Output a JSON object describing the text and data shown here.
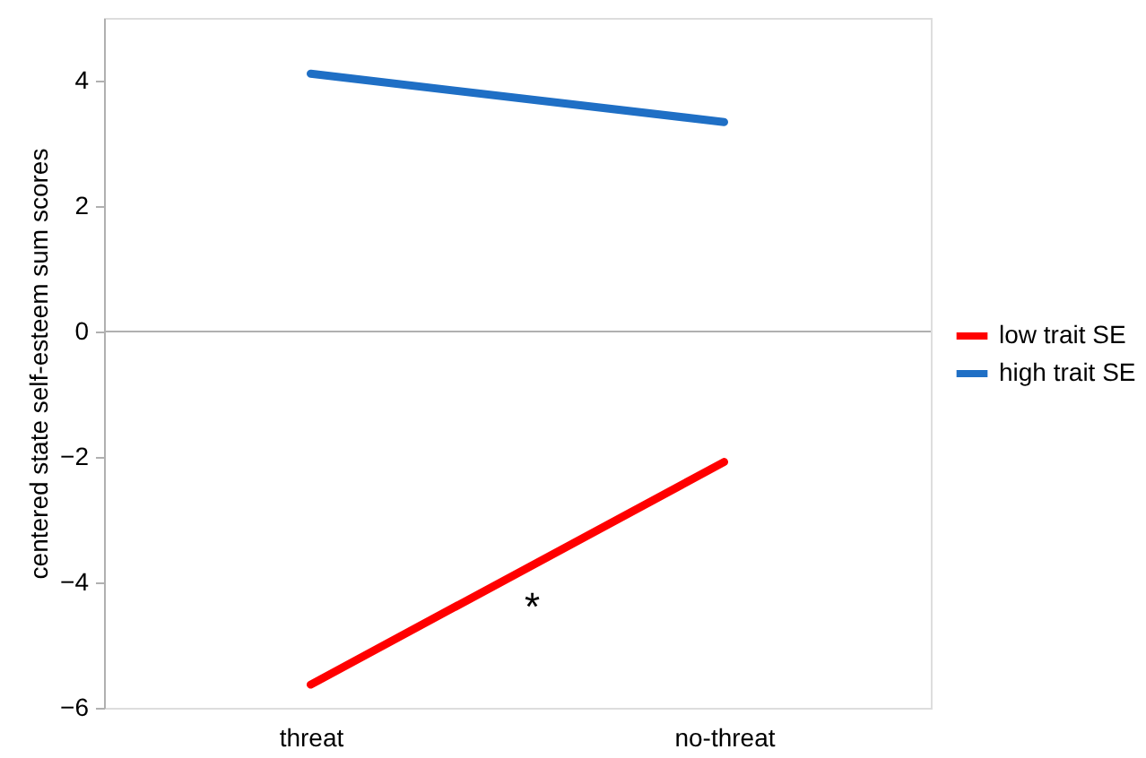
{
  "chart_data": {
    "type": "line",
    "ylabel": "centered state self-esteem sum scores",
    "categories": [
      "threat",
      "no-threat"
    ],
    "series": [
      {
        "name": "low trait SE",
        "color": "#ff0000",
        "values": [
          -5.63,
          -2.08
        ]
      },
      {
        "name": "high trait SE",
        "color": "#1f6fc5",
        "values": [
          4.11,
          3.34
        ]
      }
    ],
    "ylim": [
      -6,
      5
    ],
    "yticks": [
      -6,
      -4,
      -2,
      0,
      2,
      4
    ],
    "ref_lines": [
      {
        "axis": "y",
        "value": 0,
        "color": "#b0b0b0"
      }
    ],
    "annotations": [
      "*"
    ],
    "legend": "right",
    "grid": false,
    "marker": "none",
    "line_style": "solid"
  }
}
